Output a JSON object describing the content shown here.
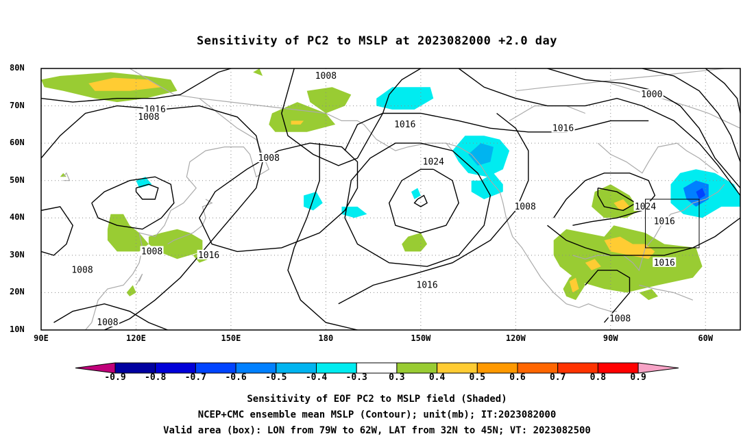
{
  "title": "Sensitivity of PC2 to MSLP at 2023082000 +2.0 day",
  "map": {
    "extent": {
      "lon_west": 90,
      "lon_east": 311,
      "lat_south": 10,
      "lat_north": 80
    },
    "lat_ticks": [
      {
        "label": "80N",
        "value": 80
      },
      {
        "label": "70N",
        "value": 70
      },
      {
        "label": "60N",
        "value": 60
      },
      {
        "label": "50N",
        "value": 50
      },
      {
        "label": "40N",
        "value": 40
      },
      {
        "label": "30N",
        "value": 30
      },
      {
        "label": "20N",
        "value": 20
      },
      {
        "label": "10N",
        "value": 10
      }
    ],
    "lon_ticks": [
      {
        "label": "90E",
        "value": 90
      },
      {
        "label": "120E",
        "value": 120
      },
      {
        "label": "150E",
        "value": 150
      },
      {
        "label": "180",
        "value": 180
      },
      {
        "label": "150W",
        "value": 210
      },
      {
        "label": "120W",
        "value": 240
      },
      {
        "label": "90W",
        "value": 270
      },
      {
        "label": "60W",
        "value": 300
      }
    ],
    "contour_labels": [
      {
        "text": "1008",
        "lon": 180,
        "lat": 78
      },
      {
        "text": "1000",
        "lon": 283,
        "lat": 73
      },
      {
        "text": "1016",
        "lon": 126,
        "lat": 69
      },
      {
        "text": "1008",
        "lon": 124,
        "lat": 67
      },
      {
        "text": "1016",
        "lon": 205,
        "lat": 65
      },
      {
        "text": "1016",
        "lon": 255,
        "lat": 64
      },
      {
        "text": "1008",
        "lon": 162,
        "lat": 56
      },
      {
        "text": "1024",
        "lon": 214,
        "lat": 55
      },
      {
        "text": "1024",
        "lon": 281,
        "lat": 43
      },
      {
        "text": "1008",
        "lon": 243,
        "lat": 43
      },
      {
        "text": "1016",
        "lon": 287,
        "lat": 39
      },
      {
        "text": "1008",
        "lon": 125,
        "lat": 31
      },
      {
        "text": "1016",
        "lon": 143,
        "lat": 30
      },
      {
        "text": "1016",
        "lon": 287,
        "lat": 28
      },
      {
        "text": "1008",
        "lon": 103,
        "lat": 26
      },
      {
        "text": "1016",
        "lon": 212,
        "lat": 22
      },
      {
        "text": "1008",
        "lon": 273,
        "lat": 13
      },
      {
        "text": "1008",
        "lon": 111,
        "lat": 12
      }
    ],
    "valid_box": {
      "lon_west": 281,
      "lon_east": 298,
      "lat_south": 32,
      "lat_north": 45
    },
    "land_color": "#aaaaaa",
    "contour_color": "#000000",
    "grid": "dotted"
  },
  "colorbar": {
    "labels": [
      "-0.9",
      "-0.8",
      "-0.7",
      "-0.6",
      "-0.5",
      "-0.4",
      "-0.3",
      "0.3",
      "0.4",
      "0.5",
      "0.6",
      "0.7",
      "0.8",
      "0.9"
    ],
    "colors": [
      "#0000a0",
      "#0000d8",
      "#0044ff",
      "#0080ff",
      "#00b4f0",
      "#00ecf0",
      "#ffffff",
      "#99cc33",
      "#ffcc33",
      "#ff9900",
      "#ff6600",
      "#ff3300",
      "#ff0000"
    ],
    "low_extend_color": "#c0007a",
    "high_extend_color": "#f7a3c6"
  },
  "captions": [
    "Sensitivity of EOF PC2 to MSLP field (Shaded)",
    "NCEP+CMC ensemble mean MSLP (Contour); unit(mb); IT:2023082000",
    "Valid area (box): LON from 79W to 62W, LAT from 32N to 45N; VT: 2023082500"
  ]
}
